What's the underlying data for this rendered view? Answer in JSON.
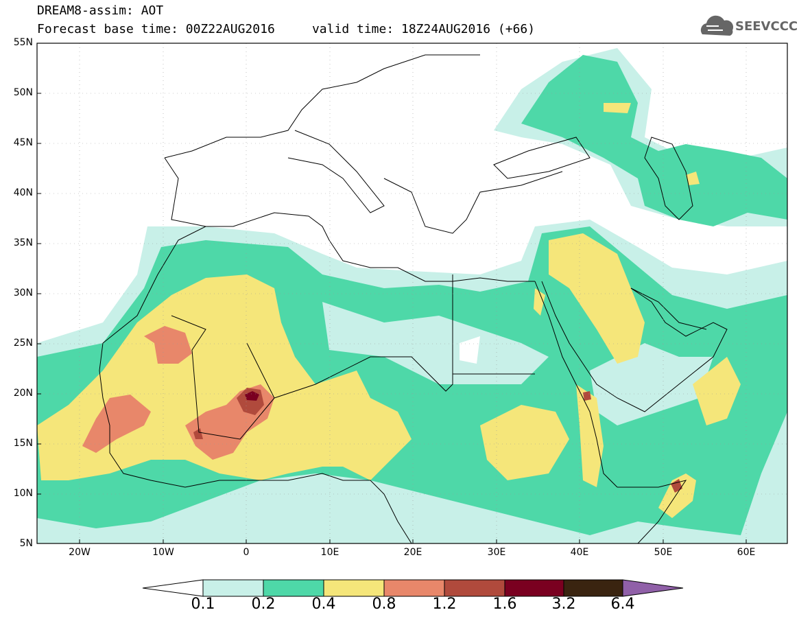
{
  "header": {
    "line1": "DREAM8-assim: AOT",
    "line2": "Forecast base time: 00Z22AUG2016     valid time: 18Z24AUG2016 (+66)"
  },
  "logo": {
    "text": "SEEVCCC",
    "icon": "cloud-logo-icon"
  },
  "axes": {
    "lat_labels": [
      "55N",
      "50N",
      "45N",
      "40N",
      "35N",
      "30N",
      "25N",
      "20N",
      "15N",
      "10N",
      "5N"
    ],
    "lon_labels": [
      "20W",
      "10W",
      "0",
      "10E",
      "20E",
      "30E",
      "40E",
      "50E",
      "60E"
    ],
    "lon_range": [
      -25,
      65
    ],
    "lat_range": [
      5,
      55
    ]
  },
  "legend": {
    "labels": [
      "0.1",
      "0.2",
      "0.4",
      "0.8",
      "1.2",
      "1.6",
      "3.2",
      "6.4"
    ],
    "colors": [
      "#ffffff",
      "#c8f0e8",
      "#4ed8a8",
      "#f5e67a",
      "#e8876a",
      "#b04a3c",
      "#7a0020",
      "#3a2410",
      "#9060a8"
    ]
  }
}
